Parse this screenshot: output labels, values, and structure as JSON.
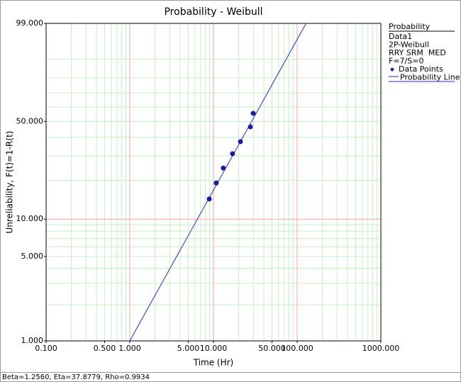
{
  "chart_data": {
    "type": "probability",
    "title": "Probability - Weibull",
    "x_label": "Time (Hr)",
    "y_label": "Unreliability, F(t)=1-R(t)",
    "xscale": "log",
    "yscale": "weibull",
    "xlim": [
      0.1,
      1000
    ],
    "ylim": [
      1,
      99
    ],
    "xticks": [
      {
        "value": 0.1,
        "label": "0.100"
      },
      {
        "value": 0.5,
        "label": "0.500"
      },
      {
        "value": 1,
        "label": "1.000"
      },
      {
        "value": 5,
        "label": "5.000"
      },
      {
        "value": 10,
        "label": "10.000"
      },
      {
        "value": 50,
        "label": "50.000"
      },
      {
        "value": 100,
        "label": "100.000"
      },
      {
        "value": 1000,
        "label": "1000.000"
      }
    ],
    "yticks": [
      {
        "value": 1,
        "label": "1.000"
      },
      {
        "value": 5,
        "label": "5.000"
      },
      {
        "value": 10,
        "label": "10.000"
      },
      {
        "value": 50,
        "label": "50.000"
      },
      {
        "value": 99,
        "label": "99.000"
      }
    ],
    "grid": true,
    "major_grid_color": "#f2a6a6",
    "minor_grid_color": "#c6efc6",
    "x_major_grid": [
      1,
      10,
      100
    ],
    "x_minor_grid": [
      0.2,
      0.3,
      0.4,
      0.5,
      0.6,
      0.7,
      0.8,
      0.9,
      2,
      3,
      4,
      5,
      6,
      7,
      8,
      9,
      20,
      30,
      40,
      50,
      60,
      70,
      80,
      90,
      200,
      300,
      400,
      500,
      600,
      700,
      800,
      900
    ],
    "y_major_grid": [
      10
    ],
    "y_minor_grid": [
      2,
      3,
      4,
      5,
      6,
      7,
      8,
      9,
      20,
      30,
      40,
      50,
      60,
      70,
      80,
      90
    ],
    "series": [
      {
        "name": "Data Points",
        "color": "#1c1c9c",
        "x": [
          8.9,
          10.8,
          13.1,
          16.9,
          21.0,
          27.6,
          29.8
        ],
        "values": [
          14.4,
          19.1,
          24.6,
          31.1,
          37.5,
          46.5,
          55.6
        ]
      },
      {
        "name": "Probability Line",
        "color": "#2a2ad0",
        "x": [
          1.0,
          127.7
        ],
        "values": [
          1,
          99
        ]
      }
    ],
    "legend": {
      "title": "Probability",
      "lines": [
        "Data1",
        "2P-Weibull",
        "RRY SRM  MED",
        "F=7/S=0"
      ]
    },
    "footer": "Beta=1.2560, Eta=37.8779, Rho=0.9934"
  }
}
